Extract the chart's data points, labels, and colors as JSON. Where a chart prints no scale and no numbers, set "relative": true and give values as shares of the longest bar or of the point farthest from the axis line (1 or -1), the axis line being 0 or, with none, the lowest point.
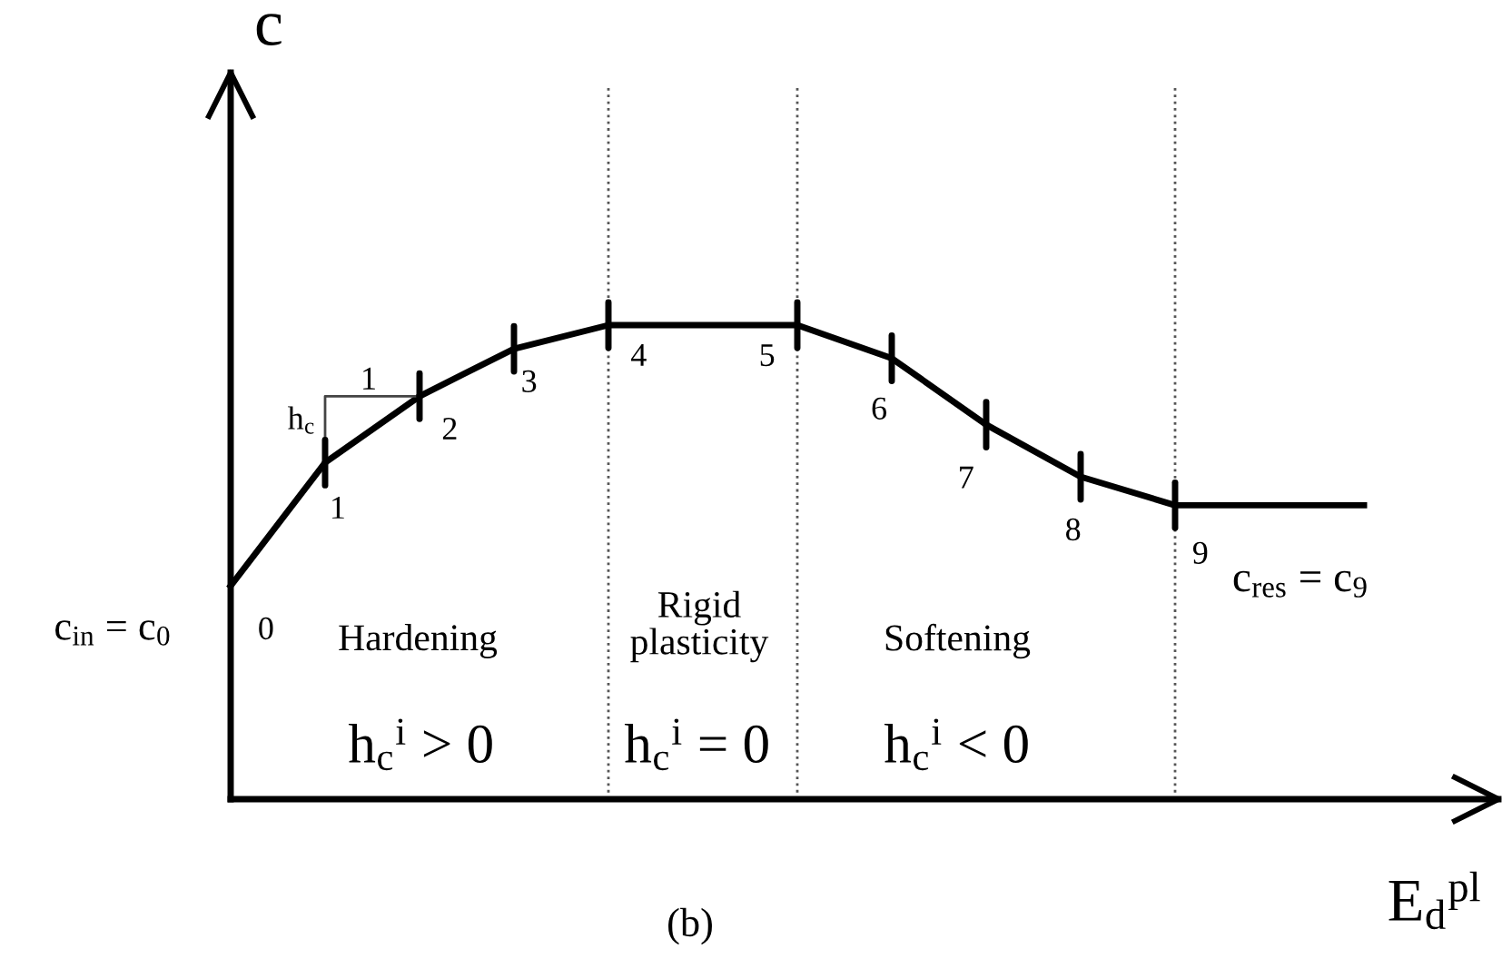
{
  "chart_data": {
    "type": "line",
    "relative": true,
    "xlabel": "E$_{d}$$^{pl}$",
    "ylabel": "c",
    "categories": [
      null,
      null,
      null,
      null,
      null,
      null,
      null,
      null,
      null,
      null,
      null,
      null,
      null
    ],
    "grid": "x",
    "line_style": "solid",
    "series": [
      {
        "color": "#000000",
        "values": [
          0.45,
          0.71,
          0.85,
          0.95,
          1,
          1,
          1,
          0.93,
          0.79,
          0.68,
          0.62,
          0.62,
          0.62
        ]
      }
    ],
    "annotations": [
      "c$_{in}$ = c$_{0}$",
      "Hardening",
      "Rigid\nplasticity",
      "Softening",
      "h$_{c}$$^{i}$ > 0",
      "h$_{c}$$^{i}$ = 0",
      "h$_{c}$$^{i}$ < 0",
      "c$_{res}$ = c$_{9}$",
      "(b)",
      "h$_{c}$",
      "1",
      "0",
      "1",
      "2",
      "3",
      "4",
      "5",
      "6",
      "7",
      "8",
      "9"
    ]
  }
}
